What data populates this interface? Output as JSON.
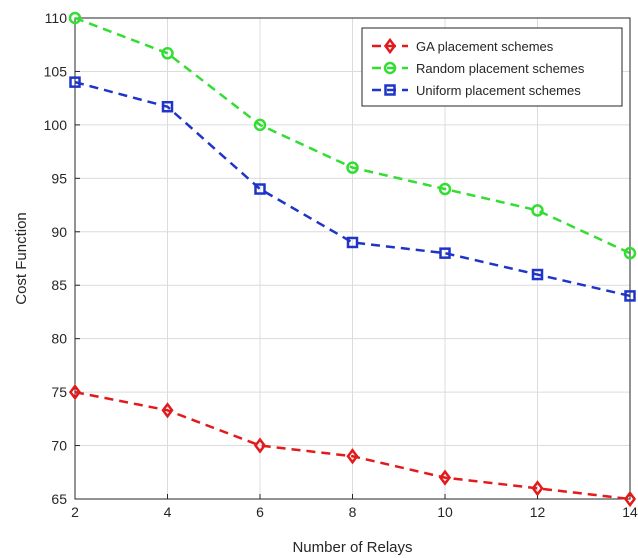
{
  "chart_data": {
    "type": "line",
    "title": "",
    "xlabel": "Number of  Relays",
    "ylabel": "Cost Function",
    "x": [
      2,
      4,
      6,
      8,
      10,
      12,
      14
    ],
    "xlim": [
      2,
      14
    ],
    "ylim": [
      65,
      110
    ],
    "xticks": [
      2,
      4,
      6,
      8,
      10,
      12,
      14
    ],
    "yticks": [
      65,
      70,
      75,
      80,
      85,
      90,
      95,
      100,
      105,
      110
    ],
    "grid": true,
    "legend_position": "top-right",
    "series": [
      {
        "name": "GA placement schemes",
        "color": "#e31a1c",
        "marker": "diamond",
        "line_style": "dashed",
        "values": [
          75,
          73.3,
          70,
          69,
          67,
          66,
          65
        ]
      },
      {
        "name": "Random placement schemes",
        "color": "#33dd33",
        "marker": "circle",
        "line_style": "dashed",
        "values": [
          110,
          106.7,
          100,
          96,
          94,
          92,
          88
        ]
      },
      {
        "name": "Uniform placement schemes",
        "color": "#1f35c8",
        "marker": "square",
        "line_style": "dashed",
        "values": [
          104,
          101.7,
          94,
          89,
          88,
          86,
          84
        ]
      }
    ]
  }
}
